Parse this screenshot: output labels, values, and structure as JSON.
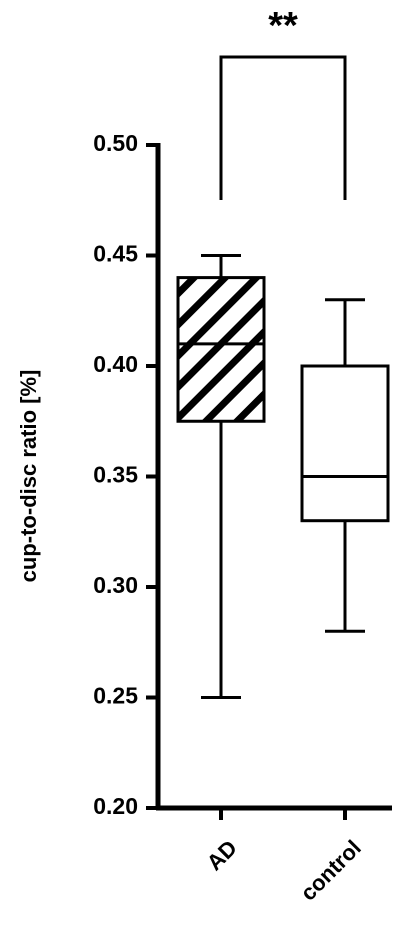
{
  "chart_data": {
    "type": "box",
    "ylabel": "cup-to-disc ratio [%]",
    "annotation": "**",
    "categories": [
      "AD",
      "control"
    ],
    "boxes": [
      {
        "min": 0.25,
        "q1": 0.375,
        "median": 0.41,
        "q3": 0.44,
        "max": 0.45,
        "hatch": true
      },
      {
        "min": 0.28,
        "q1": 0.33,
        "median": 0.35,
        "q3": 0.4,
        "max": 0.43,
        "hatch": false
      }
    ],
    "color": "#000000",
    "ylim": [
      0.2,
      0.5
    ],
    "yticks": [
      {
        "value": 0.2,
        "label": "0.20"
      },
      {
        "value": 0.25,
        "label": "0.25"
      },
      {
        "value": 0.3,
        "label": "0.30"
      },
      {
        "value": 0.35,
        "label": "0.35"
      },
      {
        "value": 0.4,
        "label": "0.40"
      },
      {
        "value": 0.45,
        "label": "0.45"
      },
      {
        "value": 0.5,
        "label": "0.50"
      }
    ]
  }
}
